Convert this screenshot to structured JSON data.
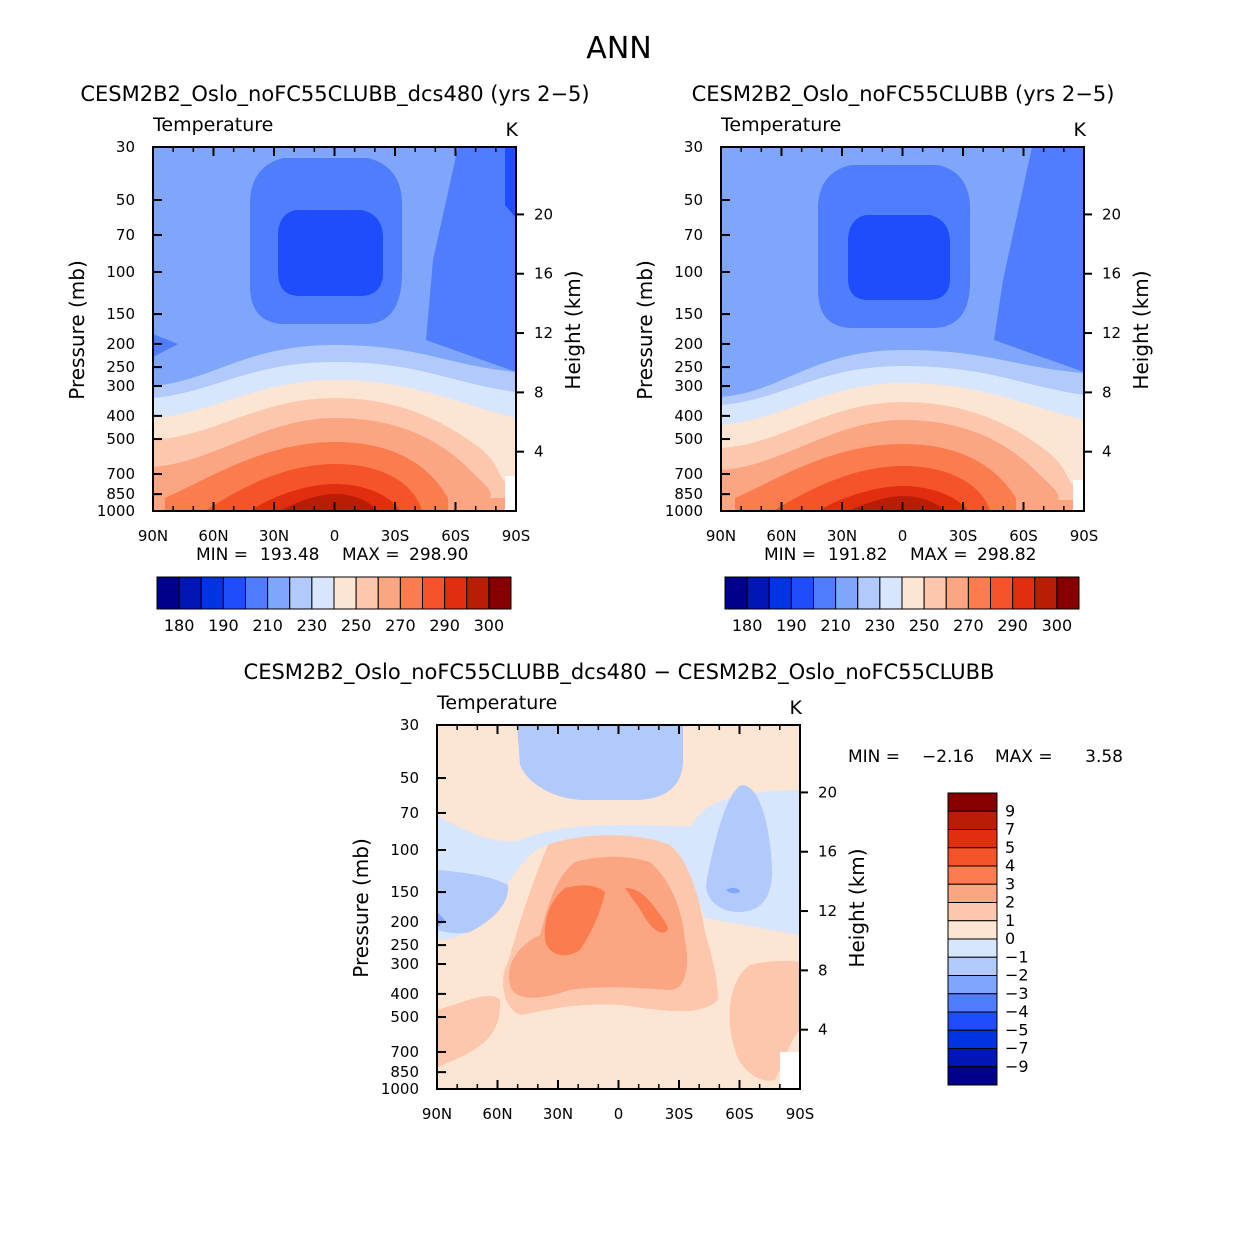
{
  "figure_title": "ANN",
  "chart_data": [
    {
      "type": "heatmap",
      "id": "p1",
      "title": "CESM2B2_Oslo_noFC55CLUBB_dcs480 (yrs 2−5)",
      "subtitle": "Temperature",
      "units": "K",
      "ylabel": "Pressure (mb)",
      "ylabel_right": "Height (km)",
      "x_ticks": [
        "90N",
        "60N",
        "30N",
        "0",
        "30S",
        "60S",
        "90S"
      ],
      "y_ticks": [
        "30",
        "50",
        "70",
        "100",
        "150",
        "200",
        "250",
        "300",
        "400",
        "500",
        "700",
        "850",
        "1000"
      ],
      "height_ticks": [
        "20",
        "16",
        "12",
        "8",
        "4"
      ],
      "min_label": "MIN =",
      "min_value": "193.48",
      "max_label": "MAX =",
      "max_value": "298.90",
      "colorbar_colors": [
        "#00008b",
        "#0016b5",
        "#0034e0",
        "#1f4dfb",
        "#4f7dfb",
        "#7fa6fb",
        "#b1c9fb",
        "#d7e6fc",
        "#fde5d4",
        "#fcc7ad",
        "#fba583",
        "#fb7c4e",
        "#f5542a",
        "#e12e0e",
        "#b91d05",
        "#870000"
      ],
      "colorbar_labels": [
        "180",
        "190",
        "210",
        "230",
        "250",
        "270",
        "290",
        "300"
      ]
    },
    {
      "type": "heatmap",
      "id": "p2",
      "title": "CESM2B2_Oslo_noFC55CLUBB (yrs 2−5)",
      "subtitle": "Temperature",
      "units": "K",
      "ylabel": "Pressure (mb)",
      "ylabel_right": "Height (km)",
      "x_ticks": [
        "90N",
        "60N",
        "30N",
        "0",
        "30S",
        "60S",
        "90S"
      ],
      "y_ticks": [
        "30",
        "50",
        "70",
        "100",
        "150",
        "200",
        "250",
        "300",
        "400",
        "500",
        "700",
        "850",
        "1000"
      ],
      "height_ticks": [
        "20",
        "16",
        "12",
        "8",
        "4"
      ],
      "min_label": "MIN =",
      "min_value": "191.82",
      "max_label": "MAX =",
      "max_value": "298.82",
      "colorbar_colors": [
        "#00008b",
        "#0016b5",
        "#0034e0",
        "#1f4dfb",
        "#4f7dfb",
        "#7fa6fb",
        "#b1c9fb",
        "#d7e6fc",
        "#fde5d4",
        "#fcc7ad",
        "#fba583",
        "#fb7c4e",
        "#f5542a",
        "#e12e0e",
        "#b91d05",
        "#870000"
      ],
      "colorbar_labels": [
        "180",
        "190",
        "210",
        "230",
        "250",
        "270",
        "290",
        "300"
      ]
    },
    {
      "type": "heatmap",
      "id": "p3",
      "title": "CESM2B2_Oslo_noFC55CLUBB_dcs480 − CESM2B2_Oslo_noFC55CLUBB",
      "subtitle": "Temperature",
      "units": "K",
      "ylabel": "Pressure (mb)",
      "ylabel_right": "Height (km)",
      "x_ticks": [
        "90N",
        "60N",
        "30N",
        "0",
        "30S",
        "60S",
        "90S"
      ],
      "y_ticks": [
        "30",
        "50",
        "70",
        "100",
        "150",
        "200",
        "250",
        "300",
        "400",
        "500",
        "700",
        "850",
        "1000"
      ],
      "height_ticks": [
        "20",
        "16",
        "12",
        "8",
        "4"
      ],
      "min_label": "MIN =",
      "min_value": "−2.16",
      "max_label": "MAX =",
      "max_value": "3.58",
      "colorbar_colors": [
        "#870000",
        "#b91d05",
        "#e12e0e",
        "#f5542a",
        "#fb7c4e",
        "#fba583",
        "#fcc7ad",
        "#fde5d4",
        "#d7e6fc",
        "#b1c9fb",
        "#7fa6fb",
        "#4f7dfb",
        "#1f4dfb",
        "#0034e0",
        "#0016b5",
        "#00008b"
      ],
      "colorbar_labels": [
        "9",
        "7",
        "5",
        "4",
        "3",
        "2",
        "1",
        "0",
        "−1",
        "−2",
        "−3",
        "−4",
        "−5",
        "−7",
        "−9"
      ]
    }
  ]
}
